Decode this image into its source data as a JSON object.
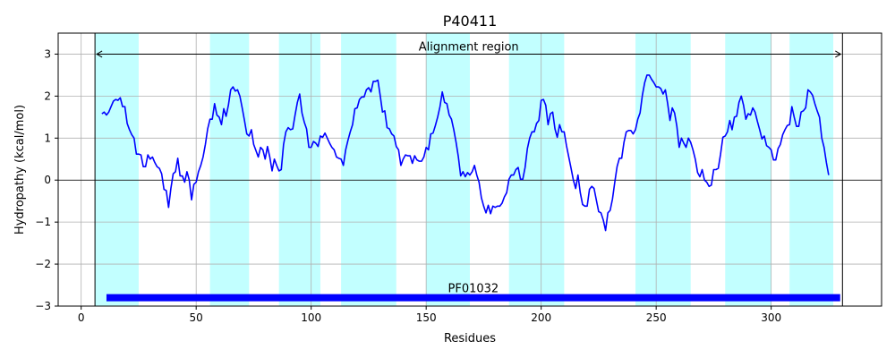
{
  "chart_data": {
    "type": "line",
    "title": "P40411",
    "xlabel": "Residues",
    "ylabel": "Hydropathy (kcal/mol)",
    "xlim": [
      -10,
      348
    ],
    "ylim": [
      -3,
      3.5
    ],
    "xticks": [
      0,
      50,
      100,
      150,
      200,
      250,
      300
    ],
    "yticks": [
      -3,
      -2,
      -1,
      0,
      1,
      2,
      3
    ],
    "grid": true,
    "colors": {
      "line": "#0000ff",
      "band": "#c2ffff",
      "domain": "#0000ff",
      "grid": "#b0b0b0"
    },
    "bands": [
      [
        6,
        25
      ],
      [
        56,
        73
      ],
      [
        86,
        104
      ],
      [
        113,
        137
      ],
      [
        150,
        169
      ],
      [
        186,
        210
      ],
      [
        241,
        265
      ],
      [
        280,
        300
      ],
      [
        308,
        327
      ]
    ],
    "alignment_region": {
      "label": "Alignment region",
      "start": 6,
      "end": 331,
      "y": 3.0
    },
    "domains": [
      {
        "label": "PF01032",
        "start": 11,
        "end": 330,
        "y": -2.8
      }
    ],
    "series": [
      {
        "points": [
          [
            9,
            1.58
          ],
          [
            10,
            1.62
          ],
          [
            11,
            1.55
          ],
          [
            12,
            1.62
          ],
          [
            13,
            1.75
          ],
          [
            14,
            1.88
          ],
          [
            15,
            1.92
          ],
          [
            16,
            1.9
          ],
          [
            17,
            1.96
          ],
          [
            18,
            1.75
          ],
          [
            19,
            1.75
          ],
          [
            20,
            1.35
          ],
          [
            21,
            1.2
          ],
          [
            22,
            1.08
          ],
          [
            23,
            1.0
          ],
          [
            24,
            0.62
          ],
          [
            25,
            0.62
          ],
          [
            26,
            0.6
          ],
          [
            27,
            0.32
          ],
          [
            28,
            0.32
          ],
          [
            29,
            0.6
          ],
          [
            30,
            0.5
          ],
          [
            31,
            0.55
          ],
          [
            32,
            0.42
          ],
          [
            33,
            0.32
          ],
          [
            34,
            0.28
          ],
          [
            35,
            0.15
          ],
          [
            36,
            -0.22
          ],
          [
            37,
            -0.25
          ],
          [
            38,
            -0.65
          ],
          [
            39,
            -0.2
          ],
          [
            40,
            0.15
          ],
          [
            41,
            0.2
          ],
          [
            42,
            0.52
          ],
          [
            43,
            0.1
          ],
          [
            44,
            0.1
          ],
          [
            45,
            -0.05
          ],
          [
            46,
            0.2
          ],
          [
            47,
            0.0
          ],
          [
            48,
            -0.47
          ],
          [
            49,
            -0.1
          ],
          [
            50,
            -0.05
          ],
          [
            51,
            0.2
          ],
          [
            52,
            0.35
          ],
          [
            53,
            0.55
          ],
          [
            54,
            0.85
          ],
          [
            55,
            1.22
          ],
          [
            56,
            1.45
          ],
          [
            57,
            1.45
          ],
          [
            58,
            1.82
          ],
          [
            59,
            1.55
          ],
          [
            60,
            1.5
          ],
          [
            61,
            1.32
          ],
          [
            62,
            1.7
          ],
          [
            63,
            1.52
          ],
          [
            64,
            1.78
          ],
          [
            65,
            2.15
          ],
          [
            66,
            2.22
          ],
          [
            67,
            2.12
          ],
          [
            68,
            2.15
          ],
          [
            69,
            2.0
          ],
          [
            70,
            1.72
          ],
          [
            71,
            1.42
          ],
          [
            72,
            1.1
          ],
          [
            73,
            1.05
          ],
          [
            74,
            1.2
          ],
          [
            75,
            0.85
          ],
          [
            76,
            0.7
          ],
          [
            77,
            0.55
          ],
          [
            78,
            0.78
          ],
          [
            79,
            0.72
          ],
          [
            80,
            0.5
          ],
          [
            81,
            0.8
          ],
          [
            82,
            0.55
          ],
          [
            83,
            0.22
          ],
          [
            84,
            0.5
          ],
          [
            85,
            0.35
          ],
          [
            86,
            0.22
          ],
          [
            87,
            0.25
          ],
          [
            88,
            0.85
          ],
          [
            89,
            1.15
          ],
          [
            90,
            1.25
          ],
          [
            91,
            1.2
          ],
          [
            92,
            1.22
          ],
          [
            93,
            1.55
          ],
          [
            94,
            1.85
          ],
          [
            95,
            2.05
          ],
          [
            96,
            1.6
          ],
          [
            97,
            1.38
          ],
          [
            98,
            1.22
          ],
          [
            99,
            0.78
          ],
          [
            100,
            0.78
          ],
          [
            101,
            0.92
          ],
          [
            102,
            0.88
          ],
          [
            103,
            0.8
          ],
          [
            104,
            1.05
          ],
          [
            105,
            1.02
          ],
          [
            106,
            1.12
          ],
          [
            107,
            1.0
          ],
          [
            108,
            0.88
          ],
          [
            109,
            0.78
          ],
          [
            110,
            0.72
          ],
          [
            111,
            0.55
          ],
          [
            112,
            0.52
          ],
          [
            113,
            0.5
          ],
          [
            114,
            0.35
          ],
          [
            115,
            0.72
          ],
          [
            116,
            0.95
          ],
          [
            117,
            1.15
          ],
          [
            118,
            1.32
          ],
          [
            119,
            1.7
          ],
          [
            120,
            1.72
          ],
          [
            121,
            1.92
          ],
          [
            122,
            1.98
          ],
          [
            123,
            1.98
          ],
          [
            124,
            2.15
          ],
          [
            125,
            2.2
          ],
          [
            126,
            2.1
          ],
          [
            127,
            2.35
          ],
          [
            128,
            2.35
          ],
          [
            129,
            2.38
          ],
          [
            130,
            2.02
          ],
          [
            131,
            1.62
          ],
          [
            132,
            1.65
          ],
          [
            133,
            1.25
          ],
          [
            134,
            1.22
          ],
          [
            135,
            1.1
          ],
          [
            136,
            1.05
          ],
          [
            137,
            0.8
          ],
          [
            138,
            0.72
          ],
          [
            139,
            0.35
          ],
          [
            140,
            0.5
          ],
          [
            141,
            0.6
          ],
          [
            142,
            0.58
          ],
          [
            143,
            0.58
          ],
          [
            144,
            0.4
          ],
          [
            145,
            0.58
          ],
          [
            146,
            0.48
          ],
          [
            147,
            0.45
          ],
          [
            148,
            0.45
          ],
          [
            149,
            0.55
          ],
          [
            150,
            0.78
          ],
          [
            151,
            0.72
          ],
          [
            152,
            1.1
          ],
          [
            153,
            1.12
          ],
          [
            154,
            1.3
          ],
          [
            155,
            1.5
          ],
          [
            156,
            1.75
          ],
          [
            157,
            2.1
          ],
          [
            158,
            1.85
          ],
          [
            159,
            1.82
          ],
          [
            160,
            1.55
          ],
          [
            161,
            1.45
          ],
          [
            162,
            1.2
          ],
          [
            163,
            0.9
          ],
          [
            164,
            0.55
          ],
          [
            165,
            0.1
          ],
          [
            166,
            0.2
          ],
          [
            167,
            0.08
          ],
          [
            168,
            0.18
          ],
          [
            169,
            0.12
          ],
          [
            170,
            0.2
          ],
          [
            171,
            0.35
          ],
          [
            172,
            0.12
          ],
          [
            173,
            -0.05
          ],
          [
            174,
            -0.42
          ],
          [
            175,
            -0.62
          ],
          [
            176,
            -0.78
          ],
          [
            177,
            -0.6
          ],
          [
            178,
            -0.8
          ],
          [
            179,
            -0.62
          ],
          [
            180,
            -0.65
          ],
          [
            181,
            -0.62
          ],
          [
            182,
            -0.62
          ],
          [
            183,
            -0.55
          ],
          [
            184,
            -0.4
          ],
          [
            185,
            -0.3
          ],
          [
            186,
            0.02
          ],
          [
            187,
            0.12
          ],
          [
            188,
            0.12
          ],
          [
            189,
            0.25
          ],
          [
            190,
            0.3
          ],
          [
            191,
            0.02
          ],
          [
            192,
            0.02
          ],
          [
            193,
            0.3
          ],
          [
            194,
            0.75
          ],
          [
            195,
            1.0
          ],
          [
            196,
            1.15
          ],
          [
            197,
            1.15
          ],
          [
            198,
            1.35
          ],
          [
            199,
            1.42
          ],
          [
            200,
            1.9
          ],
          [
            201,
            1.92
          ],
          [
            202,
            1.78
          ],
          [
            203,
            1.32
          ],
          [
            204,
            1.58
          ],
          [
            205,
            1.62
          ],
          [
            206,
            1.22
          ],
          [
            207,
            1.02
          ],
          [
            208,
            1.32
          ],
          [
            209,
            1.15
          ],
          [
            210,
            1.15
          ],
          [
            211,
            0.82
          ],
          [
            212,
            0.55
          ],
          [
            213,
            0.28
          ],
          [
            214,
            0.0
          ],
          [
            215,
            -0.2
          ],
          [
            216,
            0.12
          ],
          [
            217,
            -0.3
          ],
          [
            218,
            -0.58
          ],
          [
            219,
            -0.62
          ],
          [
            220,
            -0.62
          ],
          [
            221,
            -0.22
          ],
          [
            222,
            -0.15
          ],
          [
            223,
            -0.2
          ],
          [
            224,
            -0.48
          ],
          [
            225,
            -0.75
          ],
          [
            226,
            -0.78
          ],
          [
            227,
            -0.95
          ],
          [
            228,
            -1.2
          ],
          [
            229,
            -0.78
          ],
          [
            230,
            -0.72
          ],
          [
            231,
            -0.45
          ],
          [
            232,
            -0.05
          ],
          [
            233,
            0.32
          ],
          [
            234,
            0.52
          ],
          [
            235,
            0.52
          ],
          [
            236,
            0.9
          ],
          [
            237,
            1.15
          ],
          [
            238,
            1.18
          ],
          [
            239,
            1.18
          ],
          [
            240,
            1.1
          ],
          [
            241,
            1.2
          ],
          [
            242,
            1.45
          ],
          [
            243,
            1.6
          ],
          [
            244,
            2.02
          ],
          [
            245,
            2.32
          ],
          [
            246,
            2.5
          ],
          [
            247,
            2.5
          ],
          [
            248,
            2.4
          ],
          [
            249,
            2.32
          ],
          [
            250,
            2.22
          ],
          [
            251,
            2.22
          ],
          [
            252,
            2.18
          ],
          [
            253,
            2.05
          ],
          [
            254,
            2.15
          ],
          [
            255,
            1.82
          ],
          [
            256,
            1.42
          ],
          [
            257,
            1.72
          ],
          [
            258,
            1.6
          ],
          [
            259,
            1.28
          ],
          [
            260,
            0.78
          ],
          [
            261,
            1.0
          ],
          [
            262,
            0.88
          ],
          [
            263,
            0.78
          ],
          [
            264,
            1.0
          ],
          [
            265,
            0.9
          ],
          [
            266,
            0.72
          ],
          [
            267,
            0.5
          ],
          [
            268,
            0.18
          ],
          [
            269,
            0.08
          ],
          [
            270,
            0.25
          ],
          [
            271,
            0.0
          ],
          [
            272,
            -0.05
          ],
          [
            273,
            -0.15
          ],
          [
            274,
            -0.12
          ],
          [
            275,
            0.25
          ],
          [
            276,
            0.25
          ],
          [
            277,
            0.28
          ],
          [
            278,
            0.62
          ],
          [
            279,
            1.02
          ],
          [
            280,
            1.05
          ],
          [
            281,
            1.15
          ],
          [
            282,
            1.42
          ],
          [
            283,
            1.2
          ],
          [
            284,
            1.5
          ],
          [
            285,
            1.52
          ],
          [
            286,
            1.85
          ],
          [
            287,
            2.0
          ],
          [
            288,
            1.78
          ],
          [
            289,
            1.45
          ],
          [
            290,
            1.58
          ],
          [
            291,
            1.55
          ],
          [
            292,
            1.72
          ],
          [
            293,
            1.62
          ],
          [
            294,
            1.4
          ],
          [
            295,
            1.2
          ],
          [
            296,
            0.98
          ],
          [
            297,
            1.05
          ],
          [
            298,
            0.82
          ],
          [
            299,
            0.78
          ],
          [
            300,
            0.72
          ],
          [
            301,
            0.48
          ],
          [
            302,
            0.48
          ],
          [
            303,
            0.75
          ],
          [
            304,
            0.85
          ],
          [
            305,
            1.08
          ],
          [
            306,
            1.2
          ],
          [
            307,
            1.3
          ],
          [
            308,
            1.32
          ],
          [
            309,
            1.75
          ],
          [
            310,
            1.5
          ],
          [
            311,
            1.28
          ],
          [
            312,
            1.28
          ],
          [
            313,
            1.62
          ],
          [
            314,
            1.65
          ],
          [
            315,
            1.72
          ],
          [
            316,
            2.15
          ],
          [
            317,
            2.1
          ],
          [
            318,
            2.02
          ],
          [
            319,
            1.82
          ],
          [
            320,
            1.65
          ],
          [
            321,
            1.5
          ],
          [
            322,
            1.0
          ],
          [
            323,
            0.78
          ],
          [
            324,
            0.42
          ],
          [
            325,
            0.12
          ]
        ]
      }
    ]
  }
}
